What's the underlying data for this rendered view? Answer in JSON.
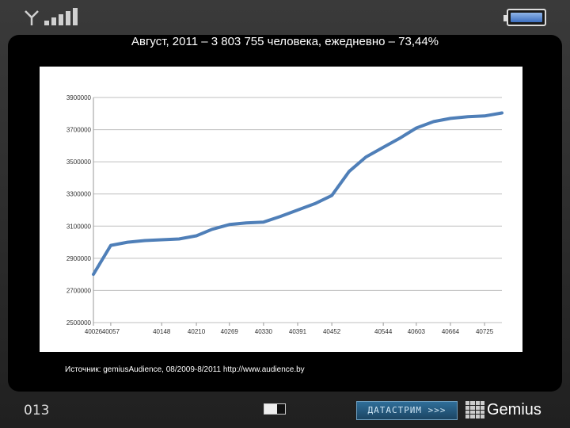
{
  "title": "Август, 2011 – 3 803 755 человека, ежедневно – 73,44%",
  "source": "Источник: gemiusAudience, 08/2009-8/2011 http://www.audience.by",
  "footer": {
    "page_number": "013",
    "button_label": "ДАТАСТРИМ >>>",
    "brand": "Gemius"
  },
  "colors": {
    "line": "#4f7fb8",
    "grid": "#bfbfbf",
    "background": "#000000"
  },
  "chart_data": {
    "type": "line",
    "title": "",
    "xlabel": "",
    "ylabel": "",
    "ylim": [
      2500000,
      3900000
    ],
    "yticks": [
      2500000,
      2700000,
      2900000,
      3100000,
      3300000,
      3500000,
      3700000,
      3900000
    ],
    "ytick_labels": [
      "2500000",
      "2700000",
      "2900000",
      "3100000",
      "3300000",
      "3500000",
      "3700000",
      "3900000"
    ],
    "categories": [
      "40026",
      "40057",
      "40148",
      "40210",
      "40269",
      "40330",
      "40391",
      "40452",
      "40544",
      "40603",
      "40664",
      "40725"
    ],
    "x": [
      40026,
      40057,
      40087,
      40118,
      40148,
      40179,
      40210,
      40238,
      40269,
      40299,
      40330,
      40360,
      40391,
      40422,
      40452,
      40483,
      40513,
      40544,
      40575,
      40603,
      40634,
      40664,
      40695,
      40725,
      40756
    ],
    "series": [
      {
        "values": [
          2800000,
          2980000,
          3000000,
          3010000,
          3015000,
          3020000,
          3040000,
          3080000,
          3110000,
          3120000,
          3125000,
          3160000,
          3200000,
          3240000,
          3290000,
          3440000,
          3530000,
          3590000,
          3650000,
          3710000,
          3750000,
          3770000,
          3780000,
          3785000,
          3803755
        ]
      }
    ],
    "grid": true,
    "legend": "none"
  }
}
